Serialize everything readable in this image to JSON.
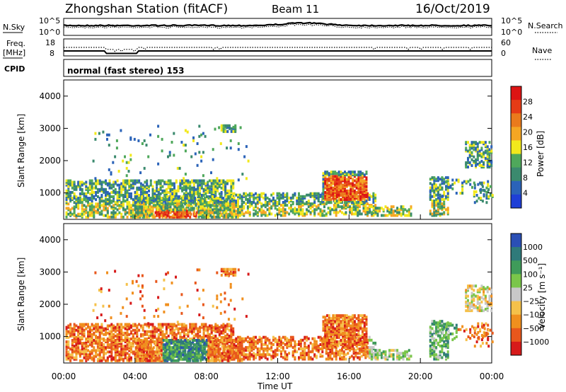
{
  "header": {
    "station_label": "Zhongshan Station (fitACF)",
    "beam_label": "Beam 11",
    "date_label": "16/Oct/2019"
  },
  "colors": {
    "power_scale": [
      "#1f3fd6",
      "#2b63b8",
      "#3b8a6e",
      "#4fa85b",
      "#f2e81c",
      "#f5a623",
      "#ea7a1c",
      "#e53b16",
      "#dd1414"
    ],
    "velocity_scale": [
      "#d71a1a",
      "#e8571c",
      "#f08f1e",
      "#f5c14a",
      "#c8c8c8",
      "#7ac64a",
      "#3f9b5a",
      "#2f7a7a",
      "#2a4fb5"
    ],
    "noise_line": "#000000"
  },
  "chart_data": [
    {
      "type": "line",
      "panel": "noise",
      "left_label": "N.Sky",
      "right_label": "N.Search",
      "left_ticks": [
        "10^5",
        "10^0"
      ],
      "right_ticks": [
        "10^5",
        "10^0"
      ],
      "x_range": [
        "00:00",
        "00:00"
      ],
      "series": [
        {
          "values_hint": "sky noise near upper level, slight bump around 13:00"
        },
        {
          "values_hint": "search noise dotted close to sky noise"
        }
      ]
    },
    {
      "type": "line",
      "panel": "frequency",
      "left_label": "Freq.",
      "left_unit": "[MHz]",
      "left_ticks": [
        "18",
        "8"
      ],
      "right_label": "Nave",
      "right_ticks": [
        "60",
        "0"
      ],
      "series": [
        {
          "values_hint": "frequency near 10 MHz, dip around 02:30-04:00"
        },
        {
          "values_hint": "nave dotted near 30"
        }
      ]
    },
    {
      "type": "text",
      "panel": "cpid",
      "label": "CPID",
      "program": "normal (fast stereo) 153"
    },
    {
      "type": "heatmap",
      "panel": "power",
      "ylabel": "Slant Range [km]",
      "yticks": [
        "4000",
        "3000",
        "2000",
        "1000"
      ],
      "ylim": [
        180,
        4500
      ],
      "xlim": [
        0,
        24
      ],
      "colorbar_label": "Power [dB]",
      "colorbar_ticks": [
        "28",
        "24",
        "20",
        "16",
        "12",
        "8",
        "4"
      ]
    },
    {
      "type": "heatmap",
      "panel": "velocity",
      "ylabel": "Slant Range [km]",
      "yticks": [
        "4000",
        "3000",
        "2000",
        "1000"
      ],
      "ylim": [
        180,
        4500
      ],
      "xlim": [
        0,
        24
      ],
      "colorbar_label": "Velocity [m s⁻¹]",
      "colorbar_ticks": [
        "1000",
        "500",
        "100",
        "25",
        "−25",
        "−100",
        "−500",
        "−1000"
      ]
    }
  ],
  "x_axis": {
    "ticks": [
      "00:00",
      "04:00",
      "08:00",
      "12:00",
      "16:00",
      "20:00",
      "00:00"
    ],
    "label": "Time UT"
  }
}
